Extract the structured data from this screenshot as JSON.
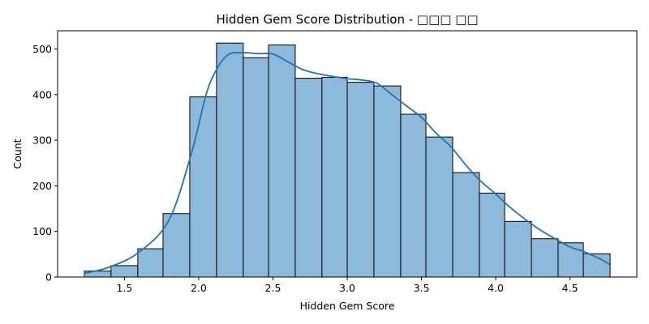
{
  "chart_data": {
    "type": "bar",
    "title": "Hidden Gem Score Distribution - □□□ □□",
    "xlabel": "Hidden Gem Score",
    "ylabel": "Count",
    "xlim": [
      1.05,
      4.95
    ],
    "ylim": [
      0,
      540
    ],
    "xticks": [
      1.5,
      2.0,
      2.5,
      3.0,
      3.5,
      4.0,
      4.5
    ],
    "xtick_labels": [
      "1.5",
      "2.0",
      "2.5",
      "3.0",
      "3.5",
      "4.0",
      "4.5"
    ],
    "yticks": [
      0,
      100,
      200,
      300,
      400,
      500
    ],
    "ytick_labels": [
      "0",
      "100",
      "200",
      "300",
      "400",
      "500"
    ],
    "bin_edges": [
      1.23,
      1.41,
      1.59,
      1.76,
      1.94,
      2.12,
      2.3,
      2.47,
      2.65,
      2.83,
      3.0,
      3.18,
      3.36,
      3.53,
      3.71,
      3.89,
      4.06,
      4.24,
      4.42,
      4.59,
      4.77
    ],
    "values": [
      13,
      25,
      62,
      139,
      395,
      513,
      481,
      509,
      436,
      438,
      427,
      419,
      357,
      307,
      229,
      184,
      122,
      84,
      75,
      51
    ],
    "kde": {
      "x": [
        1.23,
        1.4,
        1.6,
        1.8,
        1.95,
        2.05,
        2.12,
        2.2,
        2.3,
        2.4,
        2.5,
        2.6,
        2.7,
        2.8,
        2.9,
        3.0,
        3.1,
        3.2,
        3.3,
        3.4,
        3.5,
        3.6,
        3.7,
        3.8,
        3.9,
        4.0,
        4.1,
        4.2,
        4.3,
        4.4,
        4.5,
        4.6,
        4.7,
        4.77
      ],
      "y": [
        8,
        22,
        55,
        125,
        270,
        400,
        455,
        488,
        492,
        490,
        489,
        472,
        455,
        446,
        440,
        435,
        432,
        425,
        400,
        375,
        350,
        315,
        285,
        245,
        210,
        182,
        152,
        126,
        103,
        84,
        66,
        55,
        40,
        27
      ]
    },
    "bar_color": "#8db9db",
    "bar_edge_color": "#000000",
    "line_color": "#2274b1",
    "grid": false
  }
}
